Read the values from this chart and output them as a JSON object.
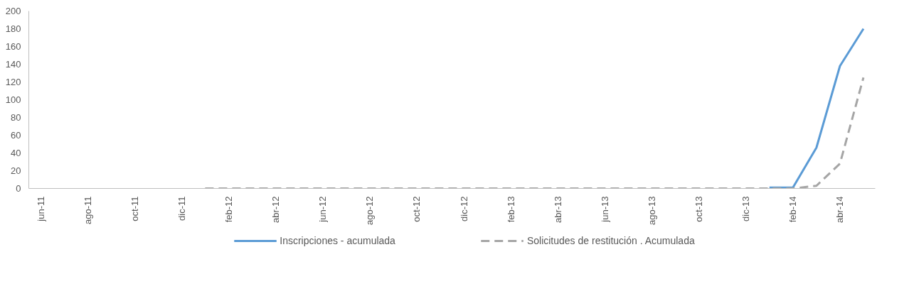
{
  "chart_data": {
    "type": "line",
    "categories": [
      "jun-11",
      null,
      "ago-11",
      null,
      "oct-11",
      null,
      "dic-11",
      null,
      "feb-12",
      null,
      "abr-12",
      null,
      "jun-12",
      null,
      "ago-12",
      null,
      "oct-12",
      null,
      "dic-12",
      null,
      "feb-13",
      null,
      "abr-13",
      null,
      "jun-13",
      null,
      "ago-13",
      null,
      "oct-13",
      null,
      "dic-13",
      null,
      "feb-14",
      null,
      "abr-14",
      null
    ],
    "series": [
      {
        "name": "Inscripciones - acumulada",
        "color": "#5b9bd5",
        "line_style": "solid",
        "values": [
          null,
          null,
          null,
          null,
          null,
          null,
          null,
          null,
          null,
          null,
          null,
          null,
          null,
          null,
          null,
          null,
          null,
          null,
          null,
          null,
          null,
          null,
          null,
          null,
          null,
          null,
          null,
          null,
          null,
          null,
          null,
          1,
          1,
          46,
          138,
          180
        ]
      },
      {
        "name": "Solicitudes de restitución . Acumulada",
        "color": "#a5a5a5",
        "line_style": "dashed",
        "values": [
          null,
          null,
          null,
          null,
          null,
          null,
          null,
          0,
          0,
          0,
          0,
          0,
          0,
          0,
          0,
          0,
          0,
          0,
          0,
          0,
          0,
          0,
          0,
          0,
          0,
          0,
          0,
          0,
          0,
          0,
          0,
          0,
          0,
          3,
          28,
          125
        ]
      }
    ],
    "ylim": [
      0,
      200
    ],
    "yticks": [
      0,
      20,
      40,
      60,
      80,
      100,
      120,
      140,
      160,
      180,
      200
    ],
    "grid": false,
    "legend": "bottom",
    "marker": "none"
  }
}
